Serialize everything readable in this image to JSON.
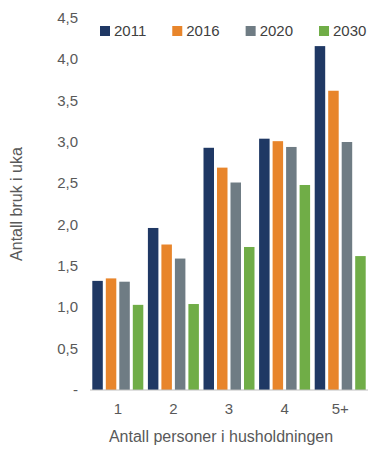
{
  "chart_data": {
    "type": "bar",
    "x_label": "Antall personer i husholdningen",
    "y_label": "Antall bruk i uka",
    "categories": [
      "1",
      "2",
      "3",
      "4",
      "5+"
    ],
    "series": [
      {
        "name": "2011",
        "color": "#1f3864",
        "values": [
          1.32,
          1.96,
          2.93,
          3.04,
          4.16
        ]
      },
      {
        "name": "2016",
        "color": "#e8852b",
        "values": [
          1.35,
          1.76,
          2.69,
          3.01,
          3.62
        ]
      },
      {
        "name": "2020",
        "color": "#6f7c84",
        "values": [
          1.31,
          1.59,
          2.51,
          2.94,
          3.0
        ]
      },
      {
        "name": "2030",
        "color": "#70ad47",
        "values": [
          1.03,
          1.04,
          1.73,
          2.48,
          1.62
        ]
      }
    ],
    "ylim": [
      0,
      4.5
    ],
    "yticks": [
      {
        "value": 0,
        "label": "-"
      },
      {
        "value": 0.5,
        "label": "0,5"
      },
      {
        "value": 1,
        "label": "1,0"
      },
      {
        "value": 1.5,
        "label": "1,5"
      },
      {
        "value": 2,
        "label": "2,0"
      },
      {
        "value": 2.5,
        "label": "2,5"
      },
      {
        "value": 3,
        "label": "3,0"
      },
      {
        "value": 3.5,
        "label": "3,5"
      },
      {
        "value": 4,
        "label": "4,0"
      },
      {
        "value": 4.5,
        "label": "4,5"
      }
    ],
    "grid": false,
    "legend": "top"
  }
}
